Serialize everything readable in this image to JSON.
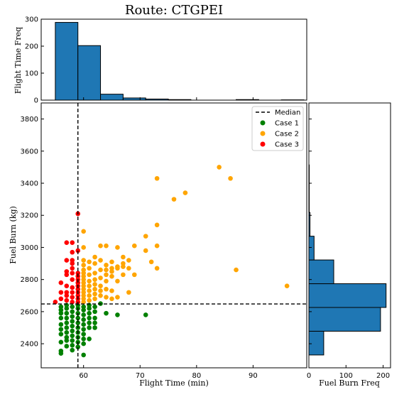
{
  "chart_data": [
    {
      "panel": "top-histogram",
      "type": "bar",
      "title": "Route: CTGPEI",
      "ylabel": "Flight Time Freq",
      "bin_edges": [
        55,
        59,
        63,
        67,
        71,
        75,
        79,
        83,
        87,
        91,
        95,
        99
      ],
      "values": [
        288,
        202,
        22,
        8,
        4,
        2,
        0,
        0,
        2,
        0,
        1
      ],
      "xlim": [
        52.5,
        99.5
      ],
      "ylim": [
        0,
        300
      ],
      "yticks": [
        0,
        100,
        200,
        300
      ],
      "color": "#1f77b4"
    },
    {
      "panel": "scatter",
      "type": "scatter",
      "xlabel": "Flight Time (min)",
      "ylabel": "Fuel Burn (kg)",
      "xlim": [
        52.5,
        99.5
      ],
      "ylim": [
        2250,
        3900
      ],
      "xticks": [
        60,
        70,
        80,
        90
      ],
      "yticks": [
        2400,
        2600,
        2800,
        3000,
        3200,
        3400,
        3600,
        3800
      ],
      "median_x": 59,
      "median_y": 2648,
      "legend": {
        "placement": "top-right",
        "median_label": "Median"
      },
      "series": [
        {
          "name": "Case 1",
          "color": "#008000",
          "points": [
            [
              56,
              2340
            ],
            [
              56,
              2355
            ],
            [
              56,
              2410
            ],
            [
              56,
              2460
            ],
            [
              56,
              2490
            ],
            [
              56,
              2520
            ],
            [
              56,
              2560
            ],
            [
              56,
              2590
            ],
            [
              56,
              2610
            ],
            [
              56,
              2630
            ],
            [
              57,
              2385
            ],
            [
              57,
              2420
            ],
            [
              57,
              2440
            ],
            [
              57,
              2470
            ],
            [
              57,
              2500
            ],
            [
              57,
              2530
            ],
            [
              57,
              2560
            ],
            [
              57,
              2590
            ],
            [
              57,
              2620
            ],
            [
              57,
              2640
            ],
            [
              58,
              2360
            ],
            [
              58,
              2390
            ],
            [
              58,
              2420
            ],
            [
              58,
              2450
            ],
            [
              58,
              2480
            ],
            [
              58,
              2510
            ],
            [
              58,
              2540
            ],
            [
              58,
              2570
            ],
            [
              58,
              2600
            ],
            [
              58,
              2630
            ],
            [
              59,
              2380
            ],
            [
              59,
              2410
            ],
            [
              59,
              2440
            ],
            [
              59,
              2470
            ],
            [
              59,
              2500
            ],
            [
              59,
              2530
            ],
            [
              59,
              2560
            ],
            [
              59,
              2590
            ],
            [
              59,
              2620
            ],
            [
              59,
              2640
            ],
            [
              60,
              2330
            ],
            [
              60,
              2400
            ],
            [
              60,
              2430
            ],
            [
              60,
              2460
            ],
            [
              60,
              2490
            ],
            [
              60,
              2520
            ],
            [
              60,
              2550
            ],
            [
              60,
              2580
            ],
            [
              60,
              2610
            ],
            [
              60,
              2630
            ],
            [
              61,
              2430
            ],
            [
              61,
              2500
            ],
            [
              61,
              2530
            ],
            [
              61,
              2560
            ],
            [
              61,
              2590
            ],
            [
              61,
              2620
            ],
            [
              61,
              2640
            ],
            [
              62,
              2500
            ],
            [
              62,
              2530
            ],
            [
              62,
              2560
            ],
            [
              62,
              2600
            ],
            [
              62,
              2630
            ],
            [
              63,
              2650
            ],
            [
              64,
              2590
            ],
            [
              66,
              2580
            ],
            [
              71,
              2580
            ]
          ]
        },
        {
          "name": "Case 2",
          "color": "#ffa500",
          "points": [
            [
              60,
              2660
            ],
            [
              60,
              2680
            ],
            [
              60,
              2700
            ],
            [
              60,
              2720
            ],
            [
              60,
              2740
            ],
            [
              60,
              2760
            ],
            [
              60,
              2780
            ],
            [
              60,
              2800
            ],
            [
              60,
              2820
            ],
            [
              60,
              2840
            ],
            [
              60,
              2860
            ],
            [
              60,
              2890
            ],
            [
              60,
              2920
            ],
            [
              60,
              3000
            ],
            [
              60,
              3100
            ],
            [
              61,
              2670
            ],
            [
              61,
              2700
            ],
            [
              61,
              2730
            ],
            [
              61,
              2760
            ],
            [
              61,
              2790
            ],
            [
              61,
              2830
            ],
            [
              61,
              2870
            ],
            [
              61,
              2910
            ],
            [
              62,
              2680
            ],
            [
              62,
              2710
            ],
            [
              62,
              2740
            ],
            [
              62,
              2770
            ],
            [
              62,
              2800
            ],
            [
              62,
              2840
            ],
            [
              62,
              2900
            ],
            [
              62,
              2940
            ],
            [
              63,
              2700
            ],
            [
              63,
              2730
            ],
            [
              63,
              2760
            ],
            [
              63,
              2810
            ],
            [
              63,
              2860
            ],
            [
              63,
              2920
            ],
            [
              63,
              3010
            ],
            [
              64,
              2690
            ],
            [
              64,
              2740
            ],
            [
              64,
              2790
            ],
            [
              64,
              2830
            ],
            [
              64,
              2860
            ],
            [
              64,
              2890
            ],
            [
              64,
              3010
            ],
            [
              65,
              2680
            ],
            [
              65,
              2730
            ],
            [
              65,
              2820
            ],
            [
              65,
              2850
            ],
            [
              65,
              2870
            ],
            [
              65,
              2910
            ],
            [
              66,
              2690
            ],
            [
              66,
              2790
            ],
            [
              66,
              2870
            ],
            [
              66,
              2880
            ],
            [
              66,
              3000
            ],
            [
              67,
              2830
            ],
            [
              67,
              2880
            ],
            [
              67,
              2900
            ],
            [
              67,
              2940
            ],
            [
              68,
              2720
            ],
            [
              68,
              2870
            ],
            [
              68,
              2920
            ],
            [
              69,
              2830
            ],
            [
              69,
              3010
            ],
            [
              71,
              2980
            ],
            [
              71,
              3070
            ],
            [
              72,
              2910
            ],
            [
              73,
              2870
            ],
            [
              73,
              3010
            ],
            [
              73,
              3140
            ],
            [
              73,
              3430
            ],
            [
              76,
              3300
            ],
            [
              78,
              3340
            ],
            [
              84,
              3500
            ],
            [
              86,
              3430
            ],
            [
              87,
              2860
            ],
            [
              96,
              2760
            ]
          ]
        },
        {
          "name": "Case 3",
          "color": "#ff0000",
          "points": [
            [
              55,
              2660
            ],
            [
              56,
              2680
            ],
            [
              56,
              2720
            ],
            [
              56,
              2780
            ],
            [
              57,
              2670
            ],
            [
              57,
              2700
            ],
            [
              57,
              2720
            ],
            [
              57,
              2760
            ],
            [
              57,
              2830
            ],
            [
              57,
              2850
            ],
            [
              57,
              2920
            ],
            [
              57,
              3030
            ],
            [
              58,
              2660
            ],
            [
              58,
              2690
            ],
            [
              58,
              2720
            ],
            [
              58,
              2750
            ],
            [
              58,
              2800
            ],
            [
              58,
              2840
            ],
            [
              58,
              2870
            ],
            [
              58,
              2900
            ],
            [
              58,
              2920
            ],
            [
              58,
              2970
            ],
            [
              58,
              3030
            ],
            [
              59,
              2660
            ],
            [
              59,
              2680
            ],
            [
              59,
              2700
            ],
            [
              59,
              2720
            ],
            [
              59,
              2740
            ],
            [
              59,
              2760
            ],
            [
              59,
              2780
            ],
            [
              59,
              2800
            ],
            [
              59,
              2820
            ],
            [
              59,
              2840
            ],
            [
              59,
              2980
            ],
            [
              59,
              3210
            ]
          ]
        }
      ]
    },
    {
      "panel": "right-histogram",
      "type": "bar",
      "orientation": "horizontal",
      "xlabel": "Fuel Burn Freq",
      "bin_edges": [
        2330,
        2478,
        2626,
        2774,
        2922,
        3070,
        3218,
        3366,
        3514
      ],
      "values": [
        40,
        193,
        208,
        67,
        14,
        3,
        1,
        1
      ],
      "xlim": [
        0,
        220
      ],
      "xticks": [
        0,
        100,
        200
      ],
      "ylim": [
        2250,
        3900
      ],
      "color": "#1f77b4"
    }
  ]
}
